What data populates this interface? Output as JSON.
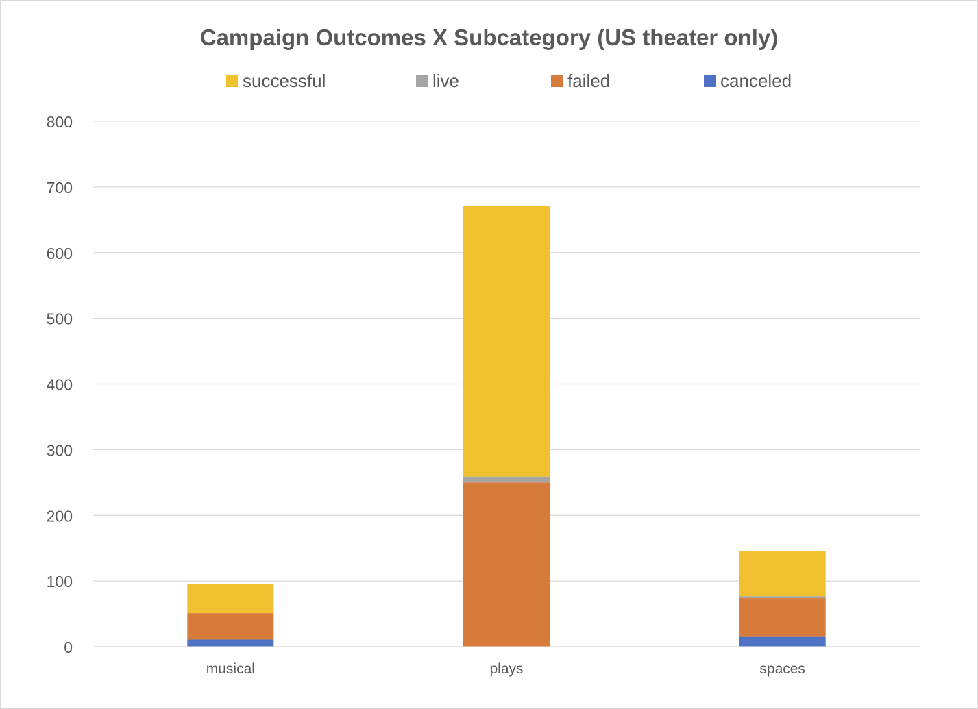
{
  "chart_data": {
    "type": "bar",
    "stacked": true,
    "title": "Campaign Outcomes X  Subcategory (US theater only)",
    "categories": [
      "musical",
      "plays",
      "spaces"
    ],
    "series": [
      {
        "name": "canceled",
        "color": "#4472c4",
        "values": [
          11,
          0,
          15
        ]
      },
      {
        "name": "failed",
        "color": "#ed7d31",
        "values": [
          40,
          250,
          59
        ]
      },
      {
        "name": "live",
        "color": "#a5a5a5",
        "values": [
          0,
          9,
          3
        ]
      },
      {
        "name": "successful",
        "color": "#ffc000",
        "values": [
          45,
          412,
          68
        ]
      }
    ],
    "legend_order": [
      "successful",
      "live",
      "failed",
      "canceled"
    ],
    "legend_position": "top",
    "ylim": [
      0,
      800
    ],
    "yticks": [
      0,
      100,
      200,
      300,
      400,
      500,
      600,
      700,
      800
    ],
    "grid": true,
    "xlabel": "",
    "ylabel": ""
  },
  "colors": {
    "successful": "#f0c02f",
    "live": "#a5a5a5",
    "failed": "#d77b3a",
    "canceled": "#4f72c5",
    "grid": "#d9d9d9",
    "text": "#595959"
  }
}
